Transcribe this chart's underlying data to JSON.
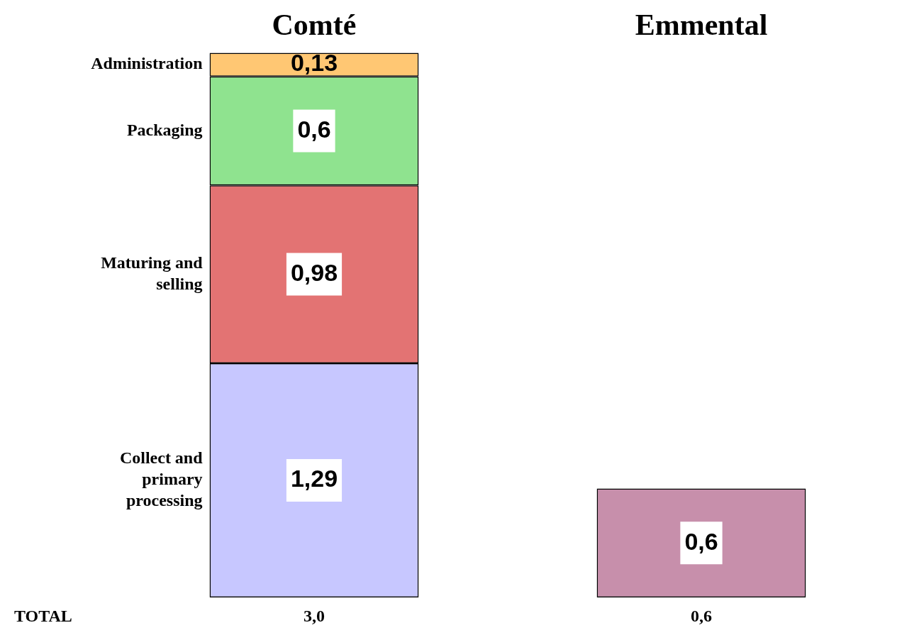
{
  "chart_data": {
    "type": "bar",
    "stacked": true,
    "categories": [
      "Comté",
      "Emmental"
    ],
    "series": [
      {
        "name": "Collect and primary processing",
        "color": "#9999ff",
        "values": [
          1.29,
          null
        ],
        "value_labels": [
          "1,29",
          null
        ]
      },
      {
        "name": "Maturing and selling",
        "color": "#cc0000",
        "values": [
          0.98,
          null
        ],
        "value_labels": [
          "0,98",
          null
        ]
      },
      {
        "name": "Packaging",
        "color": "#33cc33",
        "values": [
          0.6,
          null
        ],
        "value_labels": [
          "0,6",
          null
        ]
      },
      {
        "name": "Administration",
        "color": "#ff9900",
        "values": [
          0.13,
          null
        ],
        "value_labels": [
          "0,13",
          null
        ]
      },
      {
        "color": "#993366",
        "values": [
          null,
          0.6
        ],
        "value_labels": [
          null,
          "0,6"
        ]
      }
    ],
    "totals": [
      "3,0",
      "0,6"
    ],
    "annotations": [
      "TOTAL"
    ],
    "legend": false,
    "grid": false
  }
}
